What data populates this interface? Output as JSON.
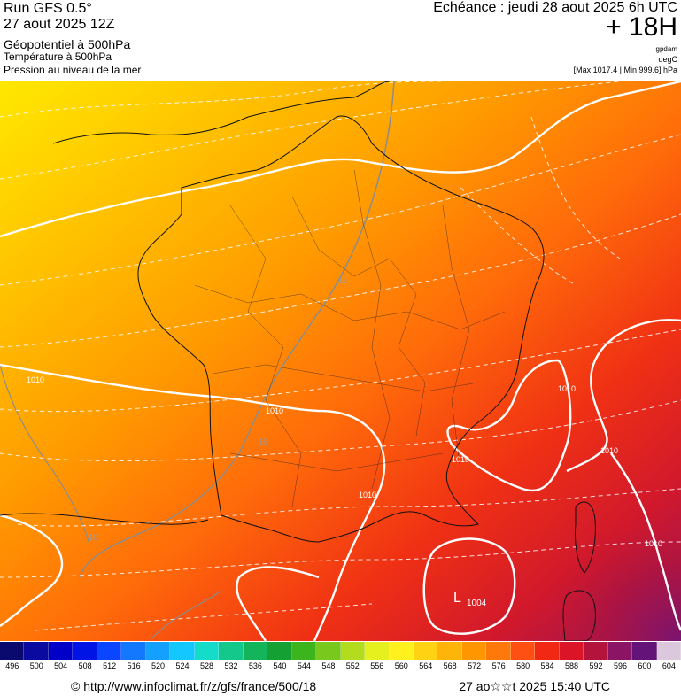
{
  "header": {
    "run_title": "Run GFS 0.5°",
    "run_date": "27 aout 2025 12Z",
    "field_geopotential": "Géopotentiel à 500hPa",
    "field_temperature": "Température à 500hPa",
    "field_pressure": "Pression au niveau de la mer",
    "echeance": "Echéance : jeudi 28 aout 2025 6h UTC",
    "lead_time": "+ 18H",
    "unit_geopotential": "gpdam",
    "unit_temperature": "degC",
    "max_min": "[Max 1017.4 | Min 999.6] hPa"
  },
  "map": {
    "isobar_labels": [
      "1010",
      "1010",
      "1010",
      "1010",
      "1010",
      "1010",
      "1010"
    ],
    "temperature_labels": [
      "16",
      "16",
      "16"
    ],
    "low_letter": "L",
    "low_value": "1004",
    "colors": {
      "yellow": "#ffe000",
      "orange": "#ff9400",
      "red_orange": "#ff4a10",
      "red": "#ee1818",
      "crimson": "#c0103c",
      "purple": "#8c1466"
    }
  },
  "color_scale": {
    "labels": [
      "496",
      "500",
      "504",
      "508",
      "512",
      "516",
      "520",
      "524",
      "528",
      "532",
      "536",
      "540",
      "544",
      "548",
      "552",
      "556",
      "560",
      "564",
      "568",
      "572",
      "576",
      "580",
      "584",
      "588",
      "592",
      "596",
      "600",
      "604"
    ],
    "colors": [
      "#0a0a6e",
      "#0a0aa0",
      "#0000c8",
      "#0014e6",
      "#0a46ff",
      "#1478ff",
      "#14a0ff",
      "#14c8ff",
      "#14dcc8",
      "#14c88c",
      "#14b45a",
      "#14a032",
      "#3cb41e",
      "#78c81e",
      "#b4dc1e",
      "#e6f01e",
      "#fff01e",
      "#ffd214",
      "#ffb40a",
      "#ff9600",
      "#ff780a",
      "#ff5014",
      "#f02814",
      "#dc1428",
      "#b4143c",
      "#8c1464",
      "#641478",
      "#dcc8dc"
    ]
  },
  "footer": {
    "url": "© http://www.infoclimat.fr/z/gfs/france/500/18",
    "timestamp": "27 ao☆☆t 2025 15:40 UTC"
  }
}
